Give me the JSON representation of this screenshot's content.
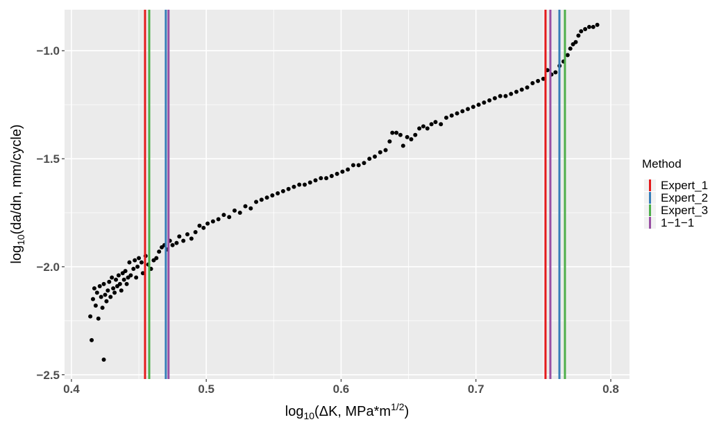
{
  "chart_data": {
    "type": "scatter",
    "x_label": {
      "base": "log",
      "sub": "10",
      "main": "(ΔK, MPa*m",
      "sup": "1/2",
      "end": ")"
    },
    "y_label": {
      "base": "log",
      "sub": "10",
      "main": "(da/dn, mm/cycle)"
    },
    "color": "#000000",
    "x": [
      0.415,
      0.424,
      0.414,
      0.416,
      0.417,
      0.418,
      0.419,
      0.42,
      0.421,
      0.422,
      0.423,
      0.424,
      0.425,
      0.426,
      0.427,
      0.428,
      0.429,
      0.43,
      0.431,
      0.432,
      0.433,
      0.434,
      0.435,
      0.436,
      0.437,
      0.438,
      0.439,
      0.44,
      0.441,
      0.442,
      0.443,
      0.444,
      0.446,
      0.447,
      0.448,
      0.449,
      0.45,
      0.452,
      0.453,
      0.455,
      0.457,
      0.459,
      0.461,
      0.463,
      0.465,
      0.467,
      0.469,
      0.471,
      0.473,
      0.475,
      0.478,
      0.48,
      0.483,
      0.486,
      0.489,
      0.492,
      0.495,
      0.498,
      0.501,
      0.505,
      0.509,
      0.513,
      0.517,
      0.521,
      0.525,
      0.529,
      0.533,
      0.537,
      0.541,
      0.545,
      0.549,
      0.553,
      0.557,
      0.561,
      0.565,
      0.569,
      0.573,
      0.577,
      0.581,
      0.585,
      0.589,
      0.593,
      0.597,
      0.601,
      0.605,
      0.609,
      0.613,
      0.617,
      0.621,
      0.625,
      0.629,
      0.633,
      0.636,
      0.638,
      0.641,
      0.644,
      0.646,
      0.649,
      0.652,
      0.655,
      0.658,
      0.661,
      0.664,
      0.667,
      0.67,
      0.674,
      0.678,
      0.682,
      0.686,
      0.69,
      0.694,
      0.698,
      0.702,
      0.706,
      0.71,
      0.714,
      0.718,
      0.722,
      0.726,
      0.73,
      0.734,
      0.738,
      0.742,
      0.746,
      0.75,
      0.753,
      0.756,
      0.759,
      0.762,
      0.765,
      0.768,
      0.77,
      0.772,
      0.774,
      0.776,
      0.778,
      0.781,
      0.784,
      0.787,
      0.79
    ],
    "values": [
      -2.34,
      -2.43,
      -2.23,
      -2.15,
      -2.1,
      -2.18,
      -2.12,
      -2.24,
      -2.09,
      -2.14,
      -2.19,
      -2.08,
      -2.13,
      -2.16,
      -2.11,
      -2.07,
      -2.14,
      -2.05,
      -2.1,
      -2.12,
      -2.06,
      -2.09,
      -2.04,
      -2.08,
      -2.11,
      -2.03,
      -2.06,
      -2.02,
      -2.08,
      -2.05,
      -1.98,
      -2.04,
      -2.01,
      -1.97,
      -2.05,
      -2.0,
      -1.96,
      -1.98,
      -2.03,
      -1.95,
      -1.99,
      -2.01,
      -1.97,
      -1.96,
      -1.93,
      -1.91,
      -1.9,
      -1.92,
      -1.88,
      -1.9,
      -1.89,
      -1.86,
      -1.88,
      -1.85,
      -1.87,
      -1.84,
      -1.81,
      -1.82,
      -1.8,
      -1.79,
      -1.78,
      -1.76,
      -1.77,
      -1.74,
      -1.75,
      -1.72,
      -1.73,
      -1.7,
      -1.69,
      -1.68,
      -1.67,
      -1.66,
      -1.65,
      -1.64,
      -1.63,
      -1.62,
      -1.62,
      -1.61,
      -1.6,
      -1.59,
      -1.59,
      -1.58,
      -1.57,
      -1.56,
      -1.55,
      -1.53,
      -1.53,
      -1.52,
      -1.5,
      -1.49,
      -1.47,
      -1.46,
      -1.42,
      -1.38,
      -1.38,
      -1.39,
      -1.44,
      -1.4,
      -1.41,
      -1.39,
      -1.36,
      -1.35,
      -1.36,
      -1.34,
      -1.33,
      -1.34,
      -1.31,
      -1.3,
      -1.29,
      -1.28,
      -1.27,
      -1.26,
      -1.25,
      -1.24,
      -1.23,
      -1.22,
      -1.21,
      -1.21,
      -1.2,
      -1.19,
      -1.18,
      -1.17,
      -1.15,
      -1.14,
      -1.13,
      -1.09,
      -1.11,
      -1.1,
      -1.07,
      -1.05,
      -1.02,
      -0.99,
      -0.97,
      -0.96,
      -0.93,
      -0.91,
      -0.9,
      -0.89,
      -0.89,
      -0.88
    ],
    "legend_title": "Method",
    "vlines": [
      {
        "name": "Expert_1",
        "color": "#e41a1c",
        "x": [
          0.4546,
          0.7516
        ]
      },
      {
        "name": "Expert_2",
        "color": "#377eb8",
        "x": [
          0.47,
          0.7619
        ]
      },
      {
        "name": "Expert_3",
        "color": "#4daf4a",
        "x": [
          0.4577,
          0.766
        ]
      },
      {
        "name": "1−1−1",
        "color": "#984ea3",
        "x": [
          0.472,
          0.7552
        ]
      }
    ],
    "xlim": [
      0.3949,
      0.8139
    ],
    "ylim": [
      -2.52,
      -0.81
    ],
    "xticks": [
      0.4,
      0.5,
      0.6,
      0.7,
      0.8
    ],
    "yticks": [
      {
        "value": -2.5,
        "label": "−2.5"
      },
      {
        "value": -2.0,
        "label": "−2.0"
      },
      {
        "value": -1.5,
        "label": "−1.5"
      },
      {
        "value": -1.0,
        "label": "−1.0"
      }
    ],
    "grid": true,
    "minor_grid": true
  }
}
